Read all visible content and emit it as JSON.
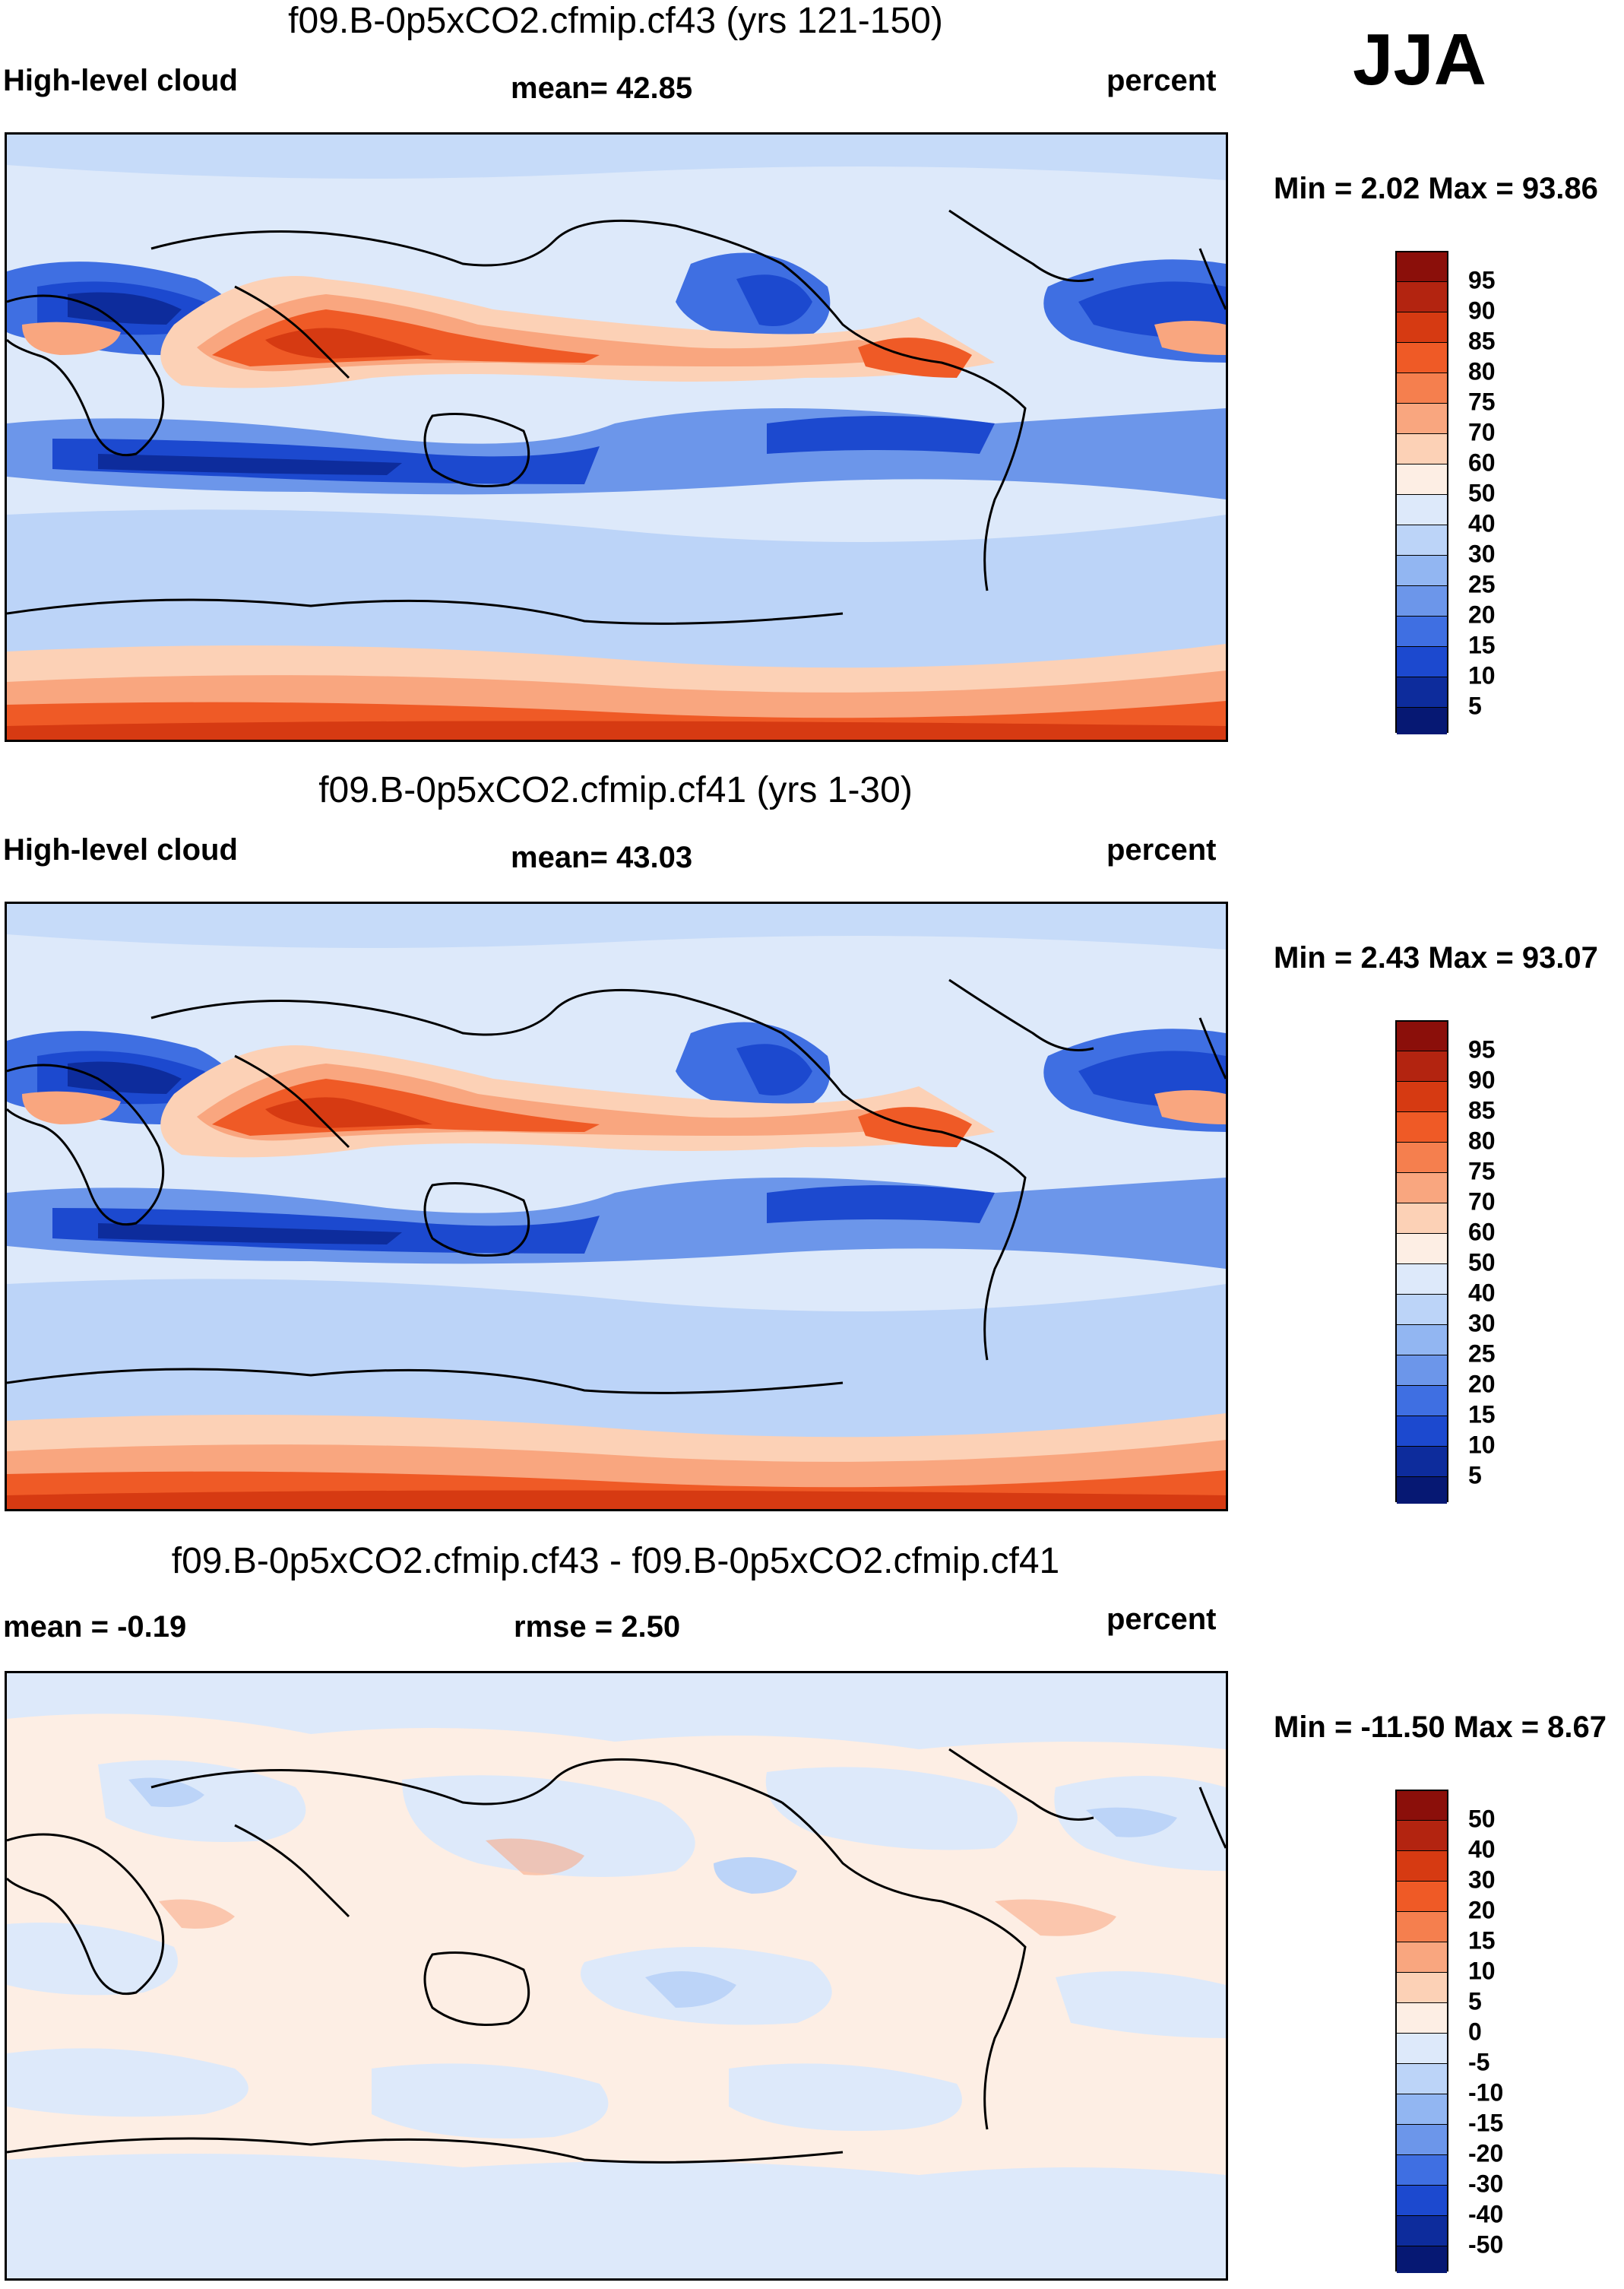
{
  "season": "JJA",
  "panels": [
    {
      "title": "f09.B-0p5xCO2.cfmip.cf43 (yrs 121-150)",
      "left_label": "High-level cloud",
      "center_label": "mean=  42.85",
      "right_label": "percent",
      "minmax": "Min =   2.02 Max =  93.86",
      "colorbar_labels": [
        "95",
        "90",
        "85",
        "80",
        "75",
        "70",
        "60",
        "50",
        "40",
        "30",
        "25",
        "20",
        "15",
        "10",
        "5"
      ],
      "colorbar_colors": [
        "#8b0f0a",
        "#b32410",
        "#d63a12",
        "#ef5a26",
        "#f57f4e",
        "#f9a67f",
        "#fcd1b6",
        "#fdeee4",
        "#dde9fa",
        "#bcd4f8",
        "#92b6f2",
        "#6c96ea",
        "#3f6fe2",
        "#1c49cf",
        "#0d2c9c",
        "#061873"
      ]
    },
    {
      "title": "f09.B-0p5xCO2.cfmip.cf41 (yrs 1-30)",
      "left_label": "High-level cloud",
      "center_label": "mean=  43.03",
      "right_label": "percent",
      "minmax": "Min =   2.43 Max =  93.07",
      "colorbar_labels": [
        "95",
        "90",
        "85",
        "80",
        "75",
        "70",
        "60",
        "50",
        "40",
        "30",
        "25",
        "20",
        "15",
        "10",
        "5"
      ],
      "colorbar_colors": [
        "#8b0f0a",
        "#b32410",
        "#d63a12",
        "#ef5a26",
        "#f57f4e",
        "#f9a67f",
        "#fcd1b6",
        "#fdeee4",
        "#dde9fa",
        "#bcd4f8",
        "#92b6f2",
        "#6c96ea",
        "#3f6fe2",
        "#1c49cf",
        "#0d2c9c",
        "#061873"
      ]
    },
    {
      "title": "f09.B-0p5xCO2.cfmip.cf43 - f09.B-0p5xCO2.cfmip.cf41",
      "left_label": "mean =  -0.19",
      "center_label": "rmse =   2.50",
      "right_label": "percent",
      "minmax": "Min = -11.50 Max =   8.67",
      "colorbar_labels": [
        "50",
        "40",
        "30",
        "20",
        "15",
        "10",
        "5",
        "0",
        "-5",
        "-10",
        "-15",
        "-20",
        "-30",
        "-40",
        "-50"
      ],
      "colorbar_colors": [
        "#8b0f0a",
        "#b32410",
        "#d63a12",
        "#ef5a26",
        "#f57f4e",
        "#f9a67f",
        "#fcd1b6",
        "#fdeee4",
        "#dde9fa",
        "#bcd4f8",
        "#92b6f2",
        "#6c96ea",
        "#3f6fe2",
        "#1c49cf",
        "#0d2c9c",
        "#061873"
      ]
    }
  ]
}
